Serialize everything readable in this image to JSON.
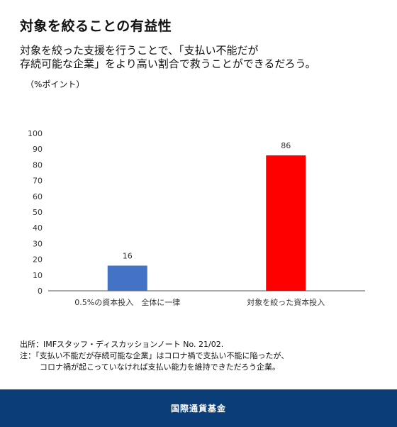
{
  "header": {
    "title": "対象を絞ることの有益性",
    "subtitle_line1": "対象を絞った支援を行うことで、「支払い不能だが",
    "subtitle_line2": "存続可能な企業」をより高い割合で救うことができるだろう。",
    "unit": "（%ポイント）"
  },
  "chart_data": {
    "type": "bar",
    "categories": [
      "0.5%の資本投入　全体に一律",
      "対象を絞った資本投入"
    ],
    "values": [
      16,
      86
    ],
    "colors": [
      "#4472c4",
      "#ff0000"
    ],
    "ylim": [
      0,
      100
    ],
    "yticks": [
      0,
      10,
      20,
      30,
      40,
      50,
      60,
      70,
      80,
      90,
      100
    ],
    "grid": false
  },
  "notes": {
    "source": "出所：IMFスタッフ・ディスカッションノート No. 21/02.",
    "note_line1": "注：「支払い不能だが存続可能な企業」はコロナ禍で支払い不能に陥ったが、",
    "note_line2": "コロナ禍が起こっていなければ支払い能力を維持できただろう企業。"
  },
  "footer": {
    "text": "国際通貨基金"
  }
}
